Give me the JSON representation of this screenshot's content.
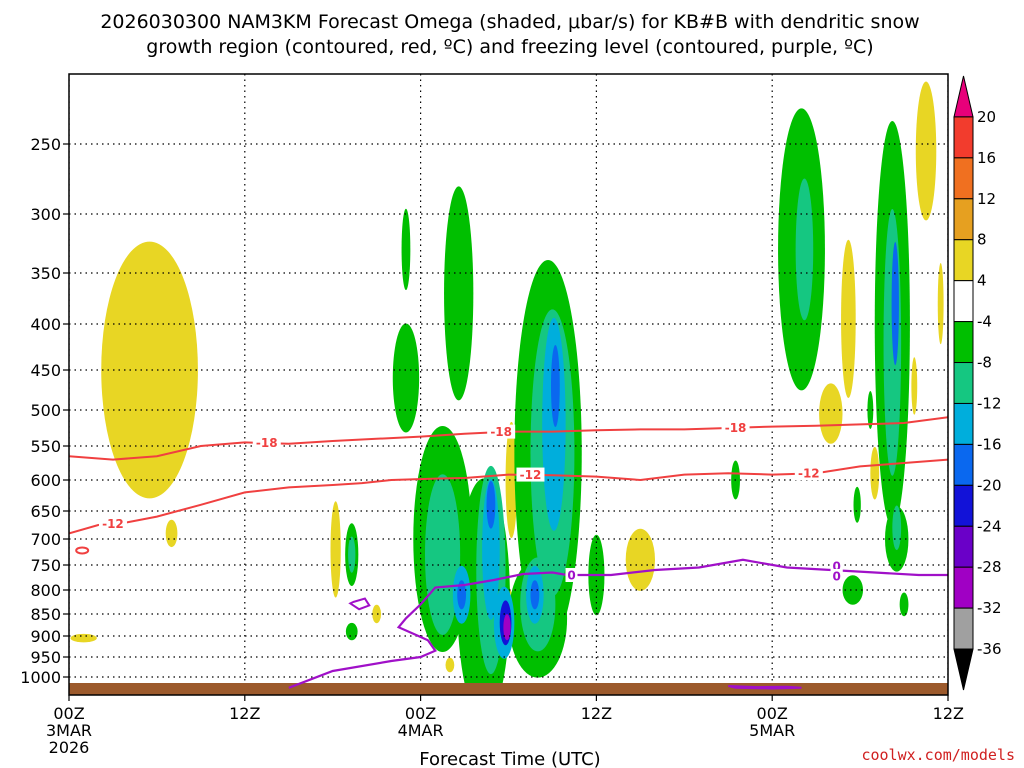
{
  "chart_data": {
    "type": "time-height cross-section",
    "title_line1": "2026030300 NAM3KM Forecast Omega (shaded, μbar/s) for KB#B with dendritic snow",
    "title_line2": "growth region (contoured, red, ºC) and freezing level (contoured, purple, ºC)",
    "xlabel": "Forecast Time (UTC)",
    "credit": "coolwx.com/models",
    "x_ticks": [
      {
        "hour": 0,
        "label": "00Z",
        "sub1": "3MAR",
        "sub2": "2026"
      },
      {
        "hour": 12,
        "label": "12Z",
        "sub1": "",
        "sub2": ""
      },
      {
        "hour": 24,
        "label": "00Z",
        "sub1": "4MAR",
        "sub2": ""
      },
      {
        "hour": 36,
        "label": "12Z",
        "sub1": "",
        "sub2": ""
      },
      {
        "hour": 48,
        "label": "00Z",
        "sub1": "5MAR",
        "sub2": ""
      },
      {
        "hour": 60,
        "label": "12Z",
        "sub1": "",
        "sub2": ""
      }
    ],
    "xlim_hours": [
      0,
      60
    ],
    "y_ticks_mb": [
      250,
      300,
      350,
      400,
      450,
      500,
      550,
      600,
      650,
      700,
      750,
      800,
      850,
      900,
      950,
      1000
    ],
    "y_range_mb": [
      200,
      1050
    ],
    "colorbar": {
      "labels": [
        "20",
        "16",
        "12",
        "8",
        "4",
        "-4",
        "-8",
        "-12",
        "-16",
        "-20",
        "-24",
        "-28",
        "-32",
        "-36"
      ],
      "colors": [
        "#e8007a",
        "#f23c2d",
        "#f07020",
        "#e6a020",
        "#e8d624",
        "#ffffff",
        "#00bf00",
        "#15c781",
        "#00aedc",
        "#0a68ef",
        "#1212d8",
        "#6a00c8",
        "#a000c4",
        "#a0a0a0",
        "#000000"
      ]
    },
    "contours": {
      "dgz_labels": [
        "-18",
        "-12"
      ],
      "freezing_label": "0",
      "dgz_color": "#f04040",
      "freezing_color": "#a010c8"
    },
    "contour_lines": {
      "minus18": [
        [
          0,
          565
        ],
        [
          3,
          570
        ],
        [
          6,
          565
        ],
        [
          9,
          550
        ],
        [
          12,
          545
        ],
        [
          15,
          547
        ],
        [
          18,
          543
        ],
        [
          21,
          540
        ],
        [
          24,
          537
        ],
        [
          27,
          533
        ],
        [
          30,
          530
        ],
        [
          33,
          530
        ],
        [
          36,
          528
        ],
        [
          39,
          527
        ],
        [
          42,
          527
        ],
        [
          45,
          525
        ],
        [
          48,
          523
        ],
        [
          51,
          522
        ],
        [
          54,
          520
        ],
        [
          57,
          518
        ],
        [
          60,
          510
        ]
      ],
      "minus12": [
        [
          0,
          690
        ],
        [
          2,
          675
        ],
        [
          4,
          670
        ],
        [
          6,
          660
        ],
        [
          9,
          640
        ],
        [
          12,
          620
        ],
        [
          15,
          612
        ],
        [
          18,
          608
        ],
        [
          20,
          605
        ],
        [
          22,
          600
        ],
        [
          25,
          598
        ],
        [
          27,
          597
        ],
        [
          30,
          592
        ],
        [
          33,
          593
        ],
        [
          36,
          595
        ],
        [
          39,
          600
        ],
        [
          42,
          592
        ],
        [
          45,
          590
        ],
        [
          48,
          592
        ],
        [
          51,
          590
        ],
        [
          54,
          580
        ],
        [
          57,
          575
        ],
        [
          60,
          570
        ]
      ],
      "freezing": [
        [
          15,
          1030
        ],
        [
          18,
          985
        ],
        [
          22,
          960
        ],
        [
          24,
          950
        ],
        [
          25,
          935
        ],
        [
          24.5,
          910
        ],
        [
          22.5,
          880
        ],
        [
          23,
          860
        ],
        [
          24,
          830
        ],
        [
          25,
          795
        ],
        [
          27,
          790
        ],
        [
          29,
          780
        ],
        [
          31,
          768
        ],
        [
          33,
          765
        ],
        [
          34,
          770
        ],
        [
          37,
          770
        ],
        [
          40,
          760
        ],
        [
          43,
          755
        ],
        [
          46,
          740
        ],
        [
          49,
          755
        ],
        [
          52,
          760
        ],
        [
          55,
          765
        ],
        [
          58,
          770
        ],
        [
          60,
          770
        ]
      ]
    },
    "omega_regions": [
      {
        "value": 4,
        "hour": 5.5,
        "mb": 450,
        "dh": 3.3,
        "dmb": 145
      },
      {
        "value": 4,
        "hour": 5.5,
        "mb": 405,
        "dh": 1.6,
        "dmb": 45
      },
      {
        "value": 4,
        "hour": 1.0,
        "mb": 905,
        "dh": 0.9,
        "dmb": 10
      },
      {
        "value": 4,
        "hour": 7.0,
        "mb": 690,
        "dh": 0.4,
        "dmb": 25
      },
      {
        "value": 4,
        "hour": 18.2,
        "mb": 720,
        "dh": 0.35,
        "dmb": 90
      },
      {
        "value": 4,
        "hour": 21.0,
        "mb": 850,
        "dh": 0.3,
        "dmb": 20
      },
      {
        "value": 4,
        "hour": 26.0,
        "mb": 970,
        "dh": 0.3,
        "dmb": 18
      },
      {
        "value": 8,
        "hour": 29.3,
        "mb": 870,
        "dh": 0.5,
        "dmb": 30
      },
      {
        "value": 4,
        "hour": 29.5,
        "mb": 850,
        "dh": 0.9,
        "dmb": 75
      },
      {
        "value": 8,
        "hour": 30.2,
        "mb": 600,
        "dh": 0.25,
        "dmb": 50
      },
      {
        "value": 4,
        "hour": 30.2,
        "mb": 600,
        "dh": 0.4,
        "dmb": 90
      },
      {
        "value": 4,
        "hour": 39.0,
        "mb": 740,
        "dh": 1.0,
        "dmb": 60
      },
      {
        "value": 4,
        "hour": 52.0,
        "mb": 505,
        "dh": 0.8,
        "dmb": 40
      },
      {
        "value": 4,
        "hour": 58.5,
        "mb": 255,
        "dh": 0.7,
        "dmb": 50
      },
      {
        "value": 4,
        "hour": 53.2,
        "mb": 395,
        "dh": 0.5,
        "dmb": 80
      },
      {
        "value": 4,
        "hour": 55.0,
        "mb": 590,
        "dh": 0.3,
        "dmb": 40
      },
      {
        "value": 4,
        "hour": 59.5,
        "mb": 380,
        "dh": 0.2,
        "dmb": 40
      },
      {
        "value": 4,
        "hour": 57.7,
        "mb": 470,
        "dh": 0.2,
        "dmb": 35
      },
      {
        "value": -4,
        "hour": 19.3,
        "mb": 730,
        "dh": 0.45,
        "dmb": 60
      },
      {
        "value": -4,
        "hour": 19.3,
        "mb": 890,
        "dh": 0.4,
        "dmb": 20
      },
      {
        "value": -4,
        "hour": 23.0,
        "mb": 460,
        "dh": 0.9,
        "dmb": 65
      },
      {
        "value": -4,
        "hour": 23.0,
        "mb": 330,
        "dh": 0.3,
        "dmb": 35
      },
      {
        "value": -4,
        "hour": 25.5,
        "mb": 700,
        "dh": 2.0,
        "dmb": 200
      },
      {
        "value": -4,
        "hour": 26.6,
        "mb": 370,
        "dh": 1.0,
        "dmb": 100
      },
      {
        "value": -4,
        "hour": 28.3,
        "mb": 820,
        "dh": 1.8,
        "dmb": 260
      },
      {
        "value": -4,
        "hour": 32.7,
        "mb": 560,
        "dh": 2.3,
        "dmb": 260
      },
      {
        "value": -4,
        "hour": 32.0,
        "mb": 860,
        "dh": 2.0,
        "dmb": 130
      },
      {
        "value": -4,
        "hour": 36.0,
        "mb": 770,
        "dh": 0.55,
        "dmb": 80
      },
      {
        "value": -4,
        "hour": 45.5,
        "mb": 600,
        "dh": 0.3,
        "dmb": 30
      },
      {
        "value": -4,
        "hour": 50.0,
        "mb": 330,
        "dh": 1.6,
        "dmb": 120
      },
      {
        "value": -4,
        "hour": 53.5,
        "mb": 800,
        "dh": 0.7,
        "dmb": 30
      },
      {
        "value": -4,
        "hour": 53.8,
        "mb": 640,
        "dh": 0.25,
        "dmb": 30
      },
      {
        "value": -4,
        "hour": 56.2,
        "mb": 400,
        "dh": 1.2,
        "dmb": 200
      },
      {
        "value": -4,
        "hour": 56.5,
        "mb": 700,
        "dh": 0.8,
        "dmb": 60
      },
      {
        "value": -4,
        "hour": 57.0,
        "mb": 830,
        "dh": 0.3,
        "dmb": 25
      },
      {
        "value": -4,
        "hour": 54.7,
        "mb": 500,
        "dh": 0.2,
        "dmb": 25
      },
      {
        "value": -8,
        "hour": 19.3,
        "mb": 730,
        "dh": 0.25,
        "dmb": 35
      },
      {
        "value": -8,
        "hour": 25.5,
        "mb": 730,
        "dh": 1.2,
        "dmb": 150
      },
      {
        "value": -8,
        "hour": 28.8,
        "mb": 760,
        "dh": 1.0,
        "dmb": 200
      },
      {
        "value": -8,
        "hour": 33.0,
        "mb": 560,
        "dh": 1.5,
        "dmb": 200
      },
      {
        "value": -8,
        "hour": 32.0,
        "mb": 830,
        "dh": 1.2,
        "dmb": 100
      },
      {
        "value": -8,
        "hour": 50.2,
        "mb": 330,
        "dh": 0.6,
        "dmb": 60
      },
      {
        "value": -8,
        "hour": 56.2,
        "mb": 420,
        "dh": 0.6,
        "dmb": 140
      },
      {
        "value": -8,
        "hour": 56.5,
        "mb": 680,
        "dh": 0.3,
        "dmb": 40
      },
      {
        "value": -12,
        "hour": 26.8,
        "mb": 810,
        "dh": 0.6,
        "dmb": 60
      },
      {
        "value": -12,
        "hour": 28.8,
        "mb": 720,
        "dh": 0.6,
        "dmb": 130
      },
      {
        "value": -12,
        "hour": 33.1,
        "mb": 520,
        "dh": 0.8,
        "dmb": 140
      },
      {
        "value": -12,
        "hour": 31.8,
        "mb": 810,
        "dh": 0.6,
        "dmb": 60
      },
      {
        "value": -12,
        "hour": 29.7,
        "mb": 870,
        "dh": 0.7,
        "dmb": 80
      },
      {
        "value": -16,
        "hour": 26.8,
        "mb": 810,
        "dh": 0.3,
        "dmb": 30
      },
      {
        "value": -16,
        "hour": 28.8,
        "mb": 640,
        "dh": 0.3,
        "dmb": 40
      },
      {
        "value": -16,
        "hour": 33.2,
        "mb": 470,
        "dh": 0.3,
        "dmb": 50
      },
      {
        "value": -16,
        "hour": 31.8,
        "mb": 810,
        "dh": 0.3,
        "dmb": 30
      },
      {
        "value": -16,
        "hour": 56.4,
        "mb": 380,
        "dh": 0.25,
        "dmb": 60
      },
      {
        "value": -20,
        "hour": 29.8,
        "mb": 870,
        "dh": 0.4,
        "dmb": 50
      },
      {
        "value": -28,
        "hour": 29.9,
        "mb": 880,
        "dh": 0.25,
        "dmb": 30
      }
    ]
  }
}
